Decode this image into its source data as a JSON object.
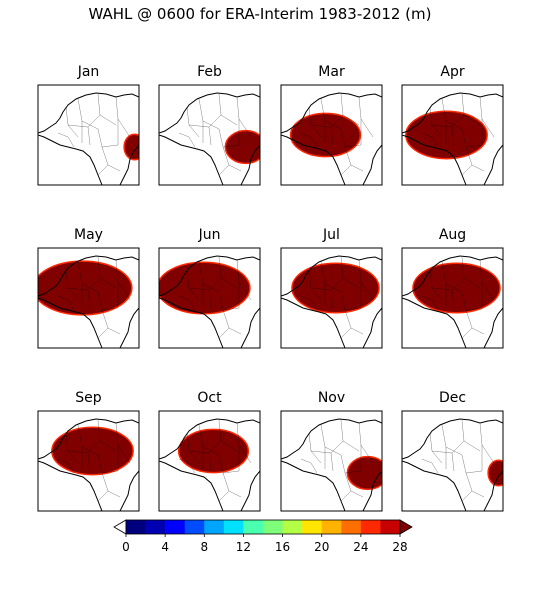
{
  "chart_data": {
    "type": "heatmap",
    "title": "WAHL @ 0600 for ERA-Interim 1983-2012 (m)",
    "panels": [
      {
        "title": "Jan",
        "coverage": 0.18
      },
      {
        "title": "Feb",
        "coverage": 0.35
      },
      {
        "title": "Mar",
        "coverage": 0.6
      },
      {
        "title": "Apr",
        "coverage": 0.7
      },
      {
        "title": "May",
        "coverage": 0.85
      },
      {
        "title": "Jun",
        "coverage": 0.8
      },
      {
        "title": "Jul",
        "coverage": 0.75
      },
      {
        "title": "Aug",
        "coverage": 0.75
      },
      {
        "title": "Sep",
        "coverage": 0.7
      },
      {
        "title": "Oct",
        "coverage": 0.6
      },
      {
        "title": "Nov",
        "coverage": 0.35
      },
      {
        "title": "Dec",
        "coverage": 0.18
      }
    ],
    "colorbar": {
      "ticks": [
        0,
        4,
        8,
        12,
        16,
        20,
        24,
        28
      ],
      "range": [
        0,
        28
      ],
      "step": 2,
      "extend": "both",
      "colors": [
        "#00007f",
        "#0000b2",
        "#0000ff",
        "#004cff",
        "#00a5ff",
        "#00e0ff",
        "#4affad",
        "#7dff7a",
        "#b2ff46",
        "#ffe500",
        "#ffb200",
        "#ff6f00",
        "#ff2900",
        "#c70000"
      ],
      "under_color": "#ffffff",
      "over_color": "#7f0000"
    },
    "land_color": "#ffffff",
    "fill_color": "#800000"
  }
}
